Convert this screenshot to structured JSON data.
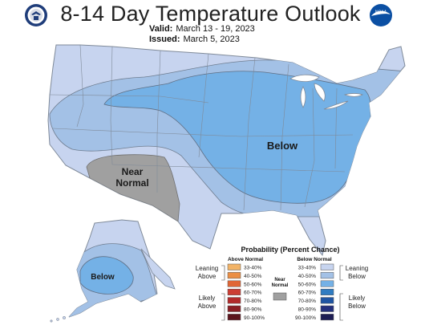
{
  "title": "8-14 Day Temperature Outlook",
  "valid": {
    "label": "Valid:",
    "value": "March 13 - 19, 2023"
  },
  "issued": {
    "label": "Issued:",
    "value": "March 5, 2023"
  },
  "logos": {
    "left": "department-of-commerce-seal",
    "right": "noaa-logo",
    "right_text": "NOAA"
  },
  "map_labels": {
    "below_conus": "Below",
    "near_normal_line1": "Near",
    "near_normal_line2": "Normal",
    "below_alaska": "Below"
  },
  "legend": {
    "title": "Probability (Percent Chance)",
    "above_header": "Above Normal",
    "below_header": "Below Normal",
    "near_header_line1": "Near",
    "near_header_line2": "Normal",
    "leaning_above": [
      "Leaning",
      "Above"
    ],
    "likely_above": [
      "Likely",
      "Above"
    ],
    "leaning_below": [
      "Leaning",
      "Below"
    ],
    "likely_below": [
      "Likely",
      "Below"
    ],
    "above_items": [
      {
        "range": "33-40%",
        "color": "#f2b366"
      },
      {
        "range": "40-50%",
        "color": "#eb8f45"
      },
      {
        "range": "50-60%",
        "color": "#e06636"
      },
      {
        "range": "60-70%",
        "color": "#cc3d33"
      },
      {
        "range": "70-80%",
        "color": "#b22a2a"
      },
      {
        "range": "80-90%",
        "color": "#8a1e24"
      },
      {
        "range": "90-100%",
        "color": "#5c141c"
      }
    ],
    "below_items": [
      {
        "range": "33-40%",
        "color": "#c7d4ef"
      },
      {
        "range": "40-50%",
        "color": "#a3c1e6"
      },
      {
        "range": "50-60%",
        "color": "#74b1e6"
      },
      {
        "range": "60-70%",
        "color": "#2f7cc2"
      },
      {
        "range": "70-80%",
        "color": "#1f55a3"
      },
      {
        "range": "80-90%",
        "color": "#24307d"
      },
      {
        "range": "90-100%",
        "color": "#1c1c54"
      }
    ],
    "near_color": "#a0a0a0"
  },
  "colors": {
    "below_33_40": "#c7d4ef",
    "below_40_50": "#a3c1e6",
    "below_50_60": "#74b1e6",
    "near_normal": "#a0a0a0",
    "water": "#ffffff",
    "boundary": "#7f8a99"
  }
}
